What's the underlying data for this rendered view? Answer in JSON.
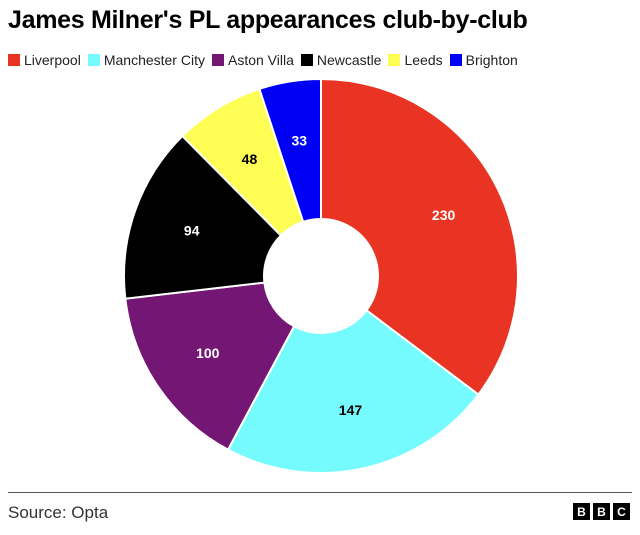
{
  "title": "James Milner's PL appearances club-by-club",
  "source": "Source: Opta",
  "logo": [
    "B",
    "B",
    "C"
  ],
  "chart_data": {
    "type": "pie",
    "title": "James Milner's PL appearances club-by-club",
    "donut": true,
    "legend_position": "top",
    "categories": [
      "Liverpool",
      "Manchester City",
      "Aston Villa",
      "Newcastle",
      "Leeds",
      "Brighton"
    ],
    "values": [
      230,
      147,
      100,
      94,
      48,
      33
    ],
    "colors": [
      "#e93323",
      "#75fbfd",
      "#741774",
      "#000000",
      "#fefe55",
      "#0000f5"
    ],
    "label_colors": [
      "#ffffff",
      "#000000",
      "#ffffff",
      "#ffffff",
      "#000000",
      "#ffffff"
    ]
  }
}
